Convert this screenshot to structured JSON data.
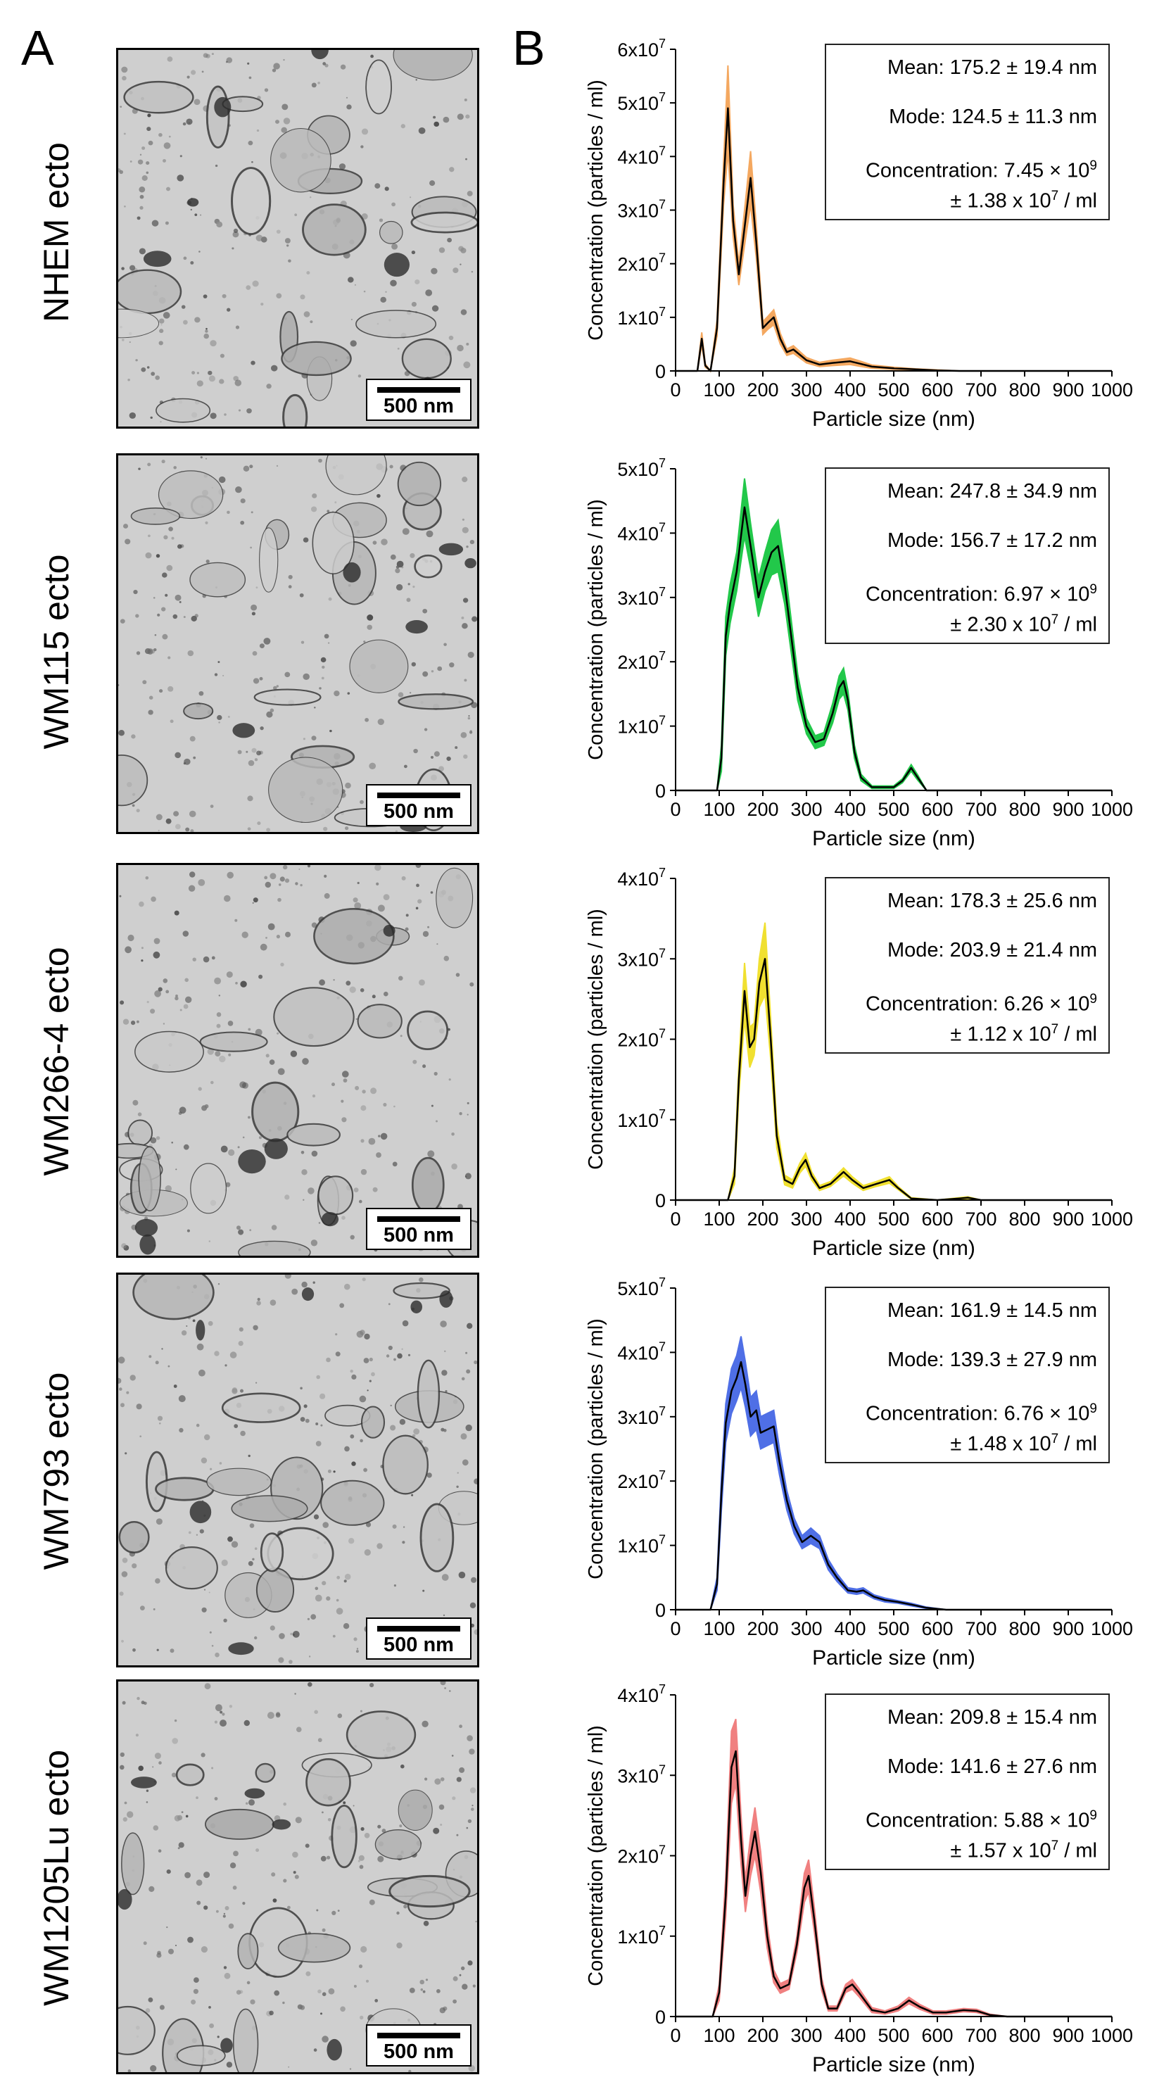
{
  "panels": {
    "a_label": "A",
    "b_label": "B"
  },
  "scale_label": "500 nm",
  "axes": {
    "xlabel": "Particle size (nm)",
    "ylabel": "Concentration (particles / ml)",
    "x_ticks": [
      "0",
      "100",
      "200",
      "300",
      "400",
      "500",
      "600",
      "700",
      "800",
      "900",
      "1000"
    ]
  },
  "samples": [
    {
      "name": "NHEM ecto",
      "mean": "Mean: 175.2 ± 19.4 nm",
      "mode": "Mode: 124.5 ± 11.3 nm",
      "conc_line1": "Concentration: 7.45 ×",
      "conc_exp1": "9",
      "conc_line2a": "± 1.38 x 10",
      "conc_exp2": "7",
      "conc_line2b": " / ml",
      "y_ticks": [
        "0",
        "1x10",
        "2x10",
        "3x10",
        "4x10",
        "5x10",
        "6x10"
      ],
      "y_tick_exp": "7",
      "band_color": "#f4a860",
      "ymax": 60000000.0,
      "points": [
        [
          0,
          0
        ],
        [
          50,
          0
        ],
        [
          60,
          6000000.0
        ],
        [
          68,
          1000000.0
        ],
        [
          80,
          0
        ],
        [
          95,
          8000000.0
        ],
        [
          110,
          35000000.0
        ],
        [
          120,
          49000000.0
        ],
        [
          132,
          28000000.0
        ],
        [
          145,
          18000000.0
        ],
        [
          160,
          28000000.0
        ],
        [
          172,
          36000000.0
        ],
        [
          185,
          24000000.0
        ],
        [
          200,
          8000000.0
        ],
        [
          212,
          9000000.0
        ],
        [
          225,
          10000000.0
        ],
        [
          240,
          6000000.0
        ],
        [
          255,
          3500000.0
        ],
        [
          270,
          4000000.0
        ],
        [
          285,
          3000000.0
        ],
        [
          300,
          2000000.0
        ],
        [
          330,
          1200000.0
        ],
        [
          360,
          1500000.0
        ],
        [
          400,
          1800000.0
        ],
        [
          420,
          1400000.0
        ],
        [
          450,
          800000.0
        ],
        [
          500,
          500000.0
        ],
        [
          550,
          300000.0
        ],
        [
          600,
          100000.0
        ],
        [
          650,
          0
        ],
        [
          1000,
          0
        ]
      ],
      "band": [
        0,
        0,
        1200000.0,
        300000.0,
        0,
        1500000.0,
        4000000.0,
        8000000.0,
        3000000.0,
        2000000.0,
        3500000.0,
        5000000.0,
        3000000.0,
        1200000.0,
        1200000.0,
        1400000.0,
        1000000.0,
        600000.0,
        700000.0,
        600000.0,
        500000.0,
        400000.0,
        500000.0,
        600000.0,
        500000.0,
        300000.0,
        200000.0,
        100000.0,
        100000.0,
        0,
        0
      ]
    },
    {
      "name": "WM115 ecto",
      "mean": "Mean: 247.8 ± 34.9 nm",
      "mode": "Mode: 156.7 ± 17.2 nm",
      "conc_line1": "Concentration: 6.97 ×",
      "conc_exp1": "9",
      "conc_line2a": "± 2.30 x 10",
      "conc_exp2": "7",
      "conc_line2b": " / ml",
      "y_ticks": [
        "0",
        "1x10",
        "2x10",
        "3x10",
        "4x10",
        "5x10"
      ],
      "y_tick_exp": "7",
      "band_color": "#22c84a",
      "ymax": 50000000.0,
      "points": [
        [
          0,
          0
        ],
        [
          95,
          0
        ],
        [
          105,
          5000000.0
        ],
        [
          115,
          24000000.0
        ],
        [
          125,
          29000000.0
        ],
        [
          140,
          34000000.0
        ],
        [
          158,
          44000000.0
        ],
        [
          172,
          38000000.0
        ],
        [
          190,
          30000000.0
        ],
        [
          205,
          34000000.0
        ],
        [
          220,
          37000000.0
        ],
        [
          235,
          38000000.0
        ],
        [
          250,
          32000000.0
        ],
        [
          265,
          24000000.0
        ],
        [
          280,
          16000000.0
        ],
        [
          300,
          10000000.0
        ],
        [
          320,
          7500000.0
        ],
        [
          340,
          8000000.0
        ],
        [
          360,
          12000000.0
        ],
        [
          375,
          16000000.0
        ],
        [
          385,
          17000000.0
        ],
        [
          395,
          14000000.0
        ],
        [
          410,
          6000000.0
        ],
        [
          425,
          2000000.0
        ],
        [
          450,
          500000.0
        ],
        [
          500,
          500000.0
        ],
        [
          520,
          1500000.0
        ],
        [
          540,
          3500000.0
        ],
        [
          555,
          2000000.0
        ],
        [
          575,
          0
        ],
        [
          1000,
          0
        ]
      ],
      "band": [
        0,
        0,
        2000000.0,
        3000000.0,
        3000000.0,
        3000000.0,
        4500000.0,
        3500000.0,
        3000000.0,
        3000000.0,
        3500000.0,
        4000000.0,
        3000000.0,
        2500000.0,
        2000000.0,
        1200000.0,
        1000000.0,
        1000000.0,
        1500000.0,
        1800000.0,
        2000000.0,
        1500000.0,
        1000000.0,
        500000.0,
        200000.0,
        200000.0,
        300000.0,
        500000.0,
        400000.0,
        0,
        0
      ]
    },
    {
      "name": "WM266-4 ecto",
      "mean": "Mean: 178.3 ± 25.6 nm",
      "mode": "Mode: 203.9 ± 21.4 nm",
      "conc_line1": "Concentration: 6.26 ×",
      "conc_exp1": "9",
      "conc_line2a": "± 1.12 x 10",
      "conc_exp2": "7",
      "conc_line2b": " / ml",
      "y_ticks": [
        "0",
        "1x10",
        "2x10",
        "3x10",
        "4x10"
      ],
      "y_tick_exp": "7",
      "band_color": "#f0e030",
      "ymax": 40000000.0,
      "points": [
        [
          0,
          0
        ],
        [
          120,
          0
        ],
        [
          135,
          3000000.0
        ],
        [
          145,
          15000000.0
        ],
        [
          158,
          26000000.0
        ],
        [
          170,
          19000000.0
        ],
        [
          180,
          20000000.0
        ],
        [
          192,
          27000000.0
        ],
        [
          205,
          30000000.0
        ],
        [
          218,
          20000000.0
        ],
        [
          232,
          8000000.0
        ],
        [
          250,
          2500000.0
        ],
        [
          268,
          2000000.0
        ],
        [
          285,
          4000000.0
        ],
        [
          298,
          5000000.0
        ],
        [
          312,
          3000000.0
        ],
        [
          330,
          1500000.0
        ],
        [
          355,
          2000000.0
        ],
        [
          385,
          3500000.0
        ],
        [
          405,
          2500000.0
        ],
        [
          430,
          1500000.0
        ],
        [
          460,
          2000000.0
        ],
        [
          490,
          2500000.0
        ],
        [
          510,
          1500000.0
        ],
        [
          540,
          200000.0
        ],
        [
          600,
          0
        ],
        [
          650,
          200000.0
        ],
        [
          670,
          300000.0
        ],
        [
          700,
          0
        ],
        [
          1000,
          0
        ]
      ],
      "band": [
        0,
        0,
        1000000.0,
        2000000.0,
        3500000.0,
        2500000.0,
        2000000.0,
        3000000.0,
        4500000.0,
        2500000.0,
        1500000.0,
        600000.0,
        500000.0,
        600000.0,
        800000.0,
        500000.0,
        300000.0,
        300000.0,
        500000.0,
        400000.0,
        300000.0,
        300000.0,
        400000.0,
        200000.0,
        100000.0,
        0,
        100000.0,
        100000.0,
        0,
        0
      ]
    },
    {
      "name": "WM793 ecto",
      "mean": "Mean: 161.9 ± 14.5 nm",
      "mode": "Mode: 139.3 ± 27.9 nm",
      "conc_line1": "Concentration: 6.76 ×",
      "conc_exp1": "9",
      "conc_line2a": "± 1.48 x 10",
      "conc_exp2": "7",
      "conc_line2b": " / ml",
      "y_ticks": [
        "0",
        "1x10",
        "2x10",
        "3x10",
        "4x10",
        "5x10"
      ],
      "y_tick_exp": "7",
      "band_color": "#4f6fe6",
      "ymax": 50000000.0,
      "points": [
        [
          0,
          0
        ],
        [
          80,
          0
        ],
        [
          95,
          4000000.0
        ],
        [
          105,
          18000000.0
        ],
        [
          115,
          29000000.0
        ],
        [
          128,
          34000000.0
        ],
        [
          140,
          36000000.0
        ],
        [
          150,
          38500000.0
        ],
        [
          160,
          35000000.0
        ],
        [
          172,
          30000000.0
        ],
        [
          185,
          31000000.0
        ],
        [
          195,
          27500000.0
        ],
        [
          210,
          28000000.0
        ],
        [
          225,
          28500000.0
        ],
        [
          238,
          23000000.0
        ],
        [
          255,
          17000000.0
        ],
        [
          272,
          13000000.0
        ],
        [
          290,
          10500000.0
        ],
        [
          310,
          11500000.0
        ],
        [
          330,
          10500000.0
        ],
        [
          350,
          7000000.0
        ],
        [
          370,
          5000000.0
        ],
        [
          395,
          3000000.0
        ],
        [
          415,
          2800000.0
        ],
        [
          430,
          3000000.0
        ],
        [
          455,
          2000000.0
        ],
        [
          480,
          1500000.0
        ],
        [
          510,
          1200000.0
        ],
        [
          540,
          800000.0
        ],
        [
          575,
          300000.0
        ],
        [
          620,
          0
        ],
        [
          1000,
          0
        ]
      ],
      "band": [
        0,
        0,
        1000000.0,
        2500000.0,
        3000000.0,
        3500000.0,
        3500000.0,
        4000000.0,
        3500000.0,
        3000000.0,
        3000000.0,
        2500000.0,
        2500000.0,
        2500000.0,
        2000000.0,
        1500000.0,
        1200000.0,
        1000000.0,
        1200000.0,
        1000000.0,
        800000.0,
        600000.0,
        400000.0,
        400000.0,
        400000.0,
        300000.0,
        300000.0,
        200000.0,
        200000.0,
        100000.0,
        0,
        0
      ]
    },
    {
      "name": "WM1205Lu ecto",
      "mean": "Mean: 209.8 ± 15.4 nm",
      "mode": "Mode: 141.6 ± 27.6 nm",
      "conc_line1": "Concentration: 5.88 ×",
      "conc_exp1": "9",
      "conc_line2a": "± 1.57 x 10",
      "conc_exp2": "7",
      "conc_line2b": " / ml",
      "y_ticks": [
        "0",
        "1x10",
        "2x10",
        "3x10",
        "4x10"
      ],
      "y_tick_exp": "7",
      "band_color": "#f08080",
      "ymax": 40000000.0,
      "points": [
        [
          0,
          0
        ],
        [
          85,
          0
        ],
        [
          100,
          3000000.0
        ],
        [
          115,
          15000000.0
        ],
        [
          128,
          31000000.0
        ],
        [
          138,
          33000000.0
        ],
        [
          150,
          22000000.0
        ],
        [
          160,
          15000000.0
        ],
        [
          172,
          20000000.0
        ],
        [
          182,
          23000000.0
        ],
        [
          195,
          18000000.0
        ],
        [
          210,
          10000000.0
        ],
        [
          225,
          5000000.0
        ],
        [
          240,
          3500000.0
        ],
        [
          260,
          4000000.0
        ],
        [
          278,
          9000000.0
        ],
        [
          295,
          16000000.0
        ],
        [
          305,
          17500000.0
        ],
        [
          318,
          12000000.0
        ],
        [
          335,
          4000000.0
        ],
        [
          350,
          1000000.0
        ],
        [
          370,
          1000000.0
        ],
        [
          390,
          3500000.0
        ],
        [
          405,
          4000000.0
        ],
        [
          420,
          3000000.0
        ],
        [
          450,
          800000.0
        ],
        [
          480,
          500000.0
        ],
        [
          510,
          1000000.0
        ],
        [
          535,
          2000000.0
        ],
        [
          560,
          1200000.0
        ],
        [
          590,
          500000.0
        ],
        [
          620,
          500000.0
        ],
        [
          660,
          800000.0
        ],
        [
          690,
          700000.0
        ],
        [
          720,
          200000.0
        ],
        [
          760,
          0
        ],
        [
          1000,
          0
        ]
      ],
      "band": [
        0,
        0,
        1000000.0,
        2500000.0,
        4500000.0,
        4000000.0,
        3000000.0,
        2000000.0,
        2500000.0,
        3000000.0,
        2500000.0,
        1500000.0,
        800000.0,
        600000.0,
        600000.0,
        1000000.0,
        1800000.0,
        2000000.0,
        1500000.0,
        800000.0,
        300000.0,
        300000.0,
        500000.0,
        600000.0,
        500000.0,
        300000.0,
        200000.0,
        300000.0,
        400000.0,
        300000.0,
        200000.0,
        200000.0,
        200000.0,
        200000.0,
        100000.0,
        0,
        0
      ]
    }
  ]
}
